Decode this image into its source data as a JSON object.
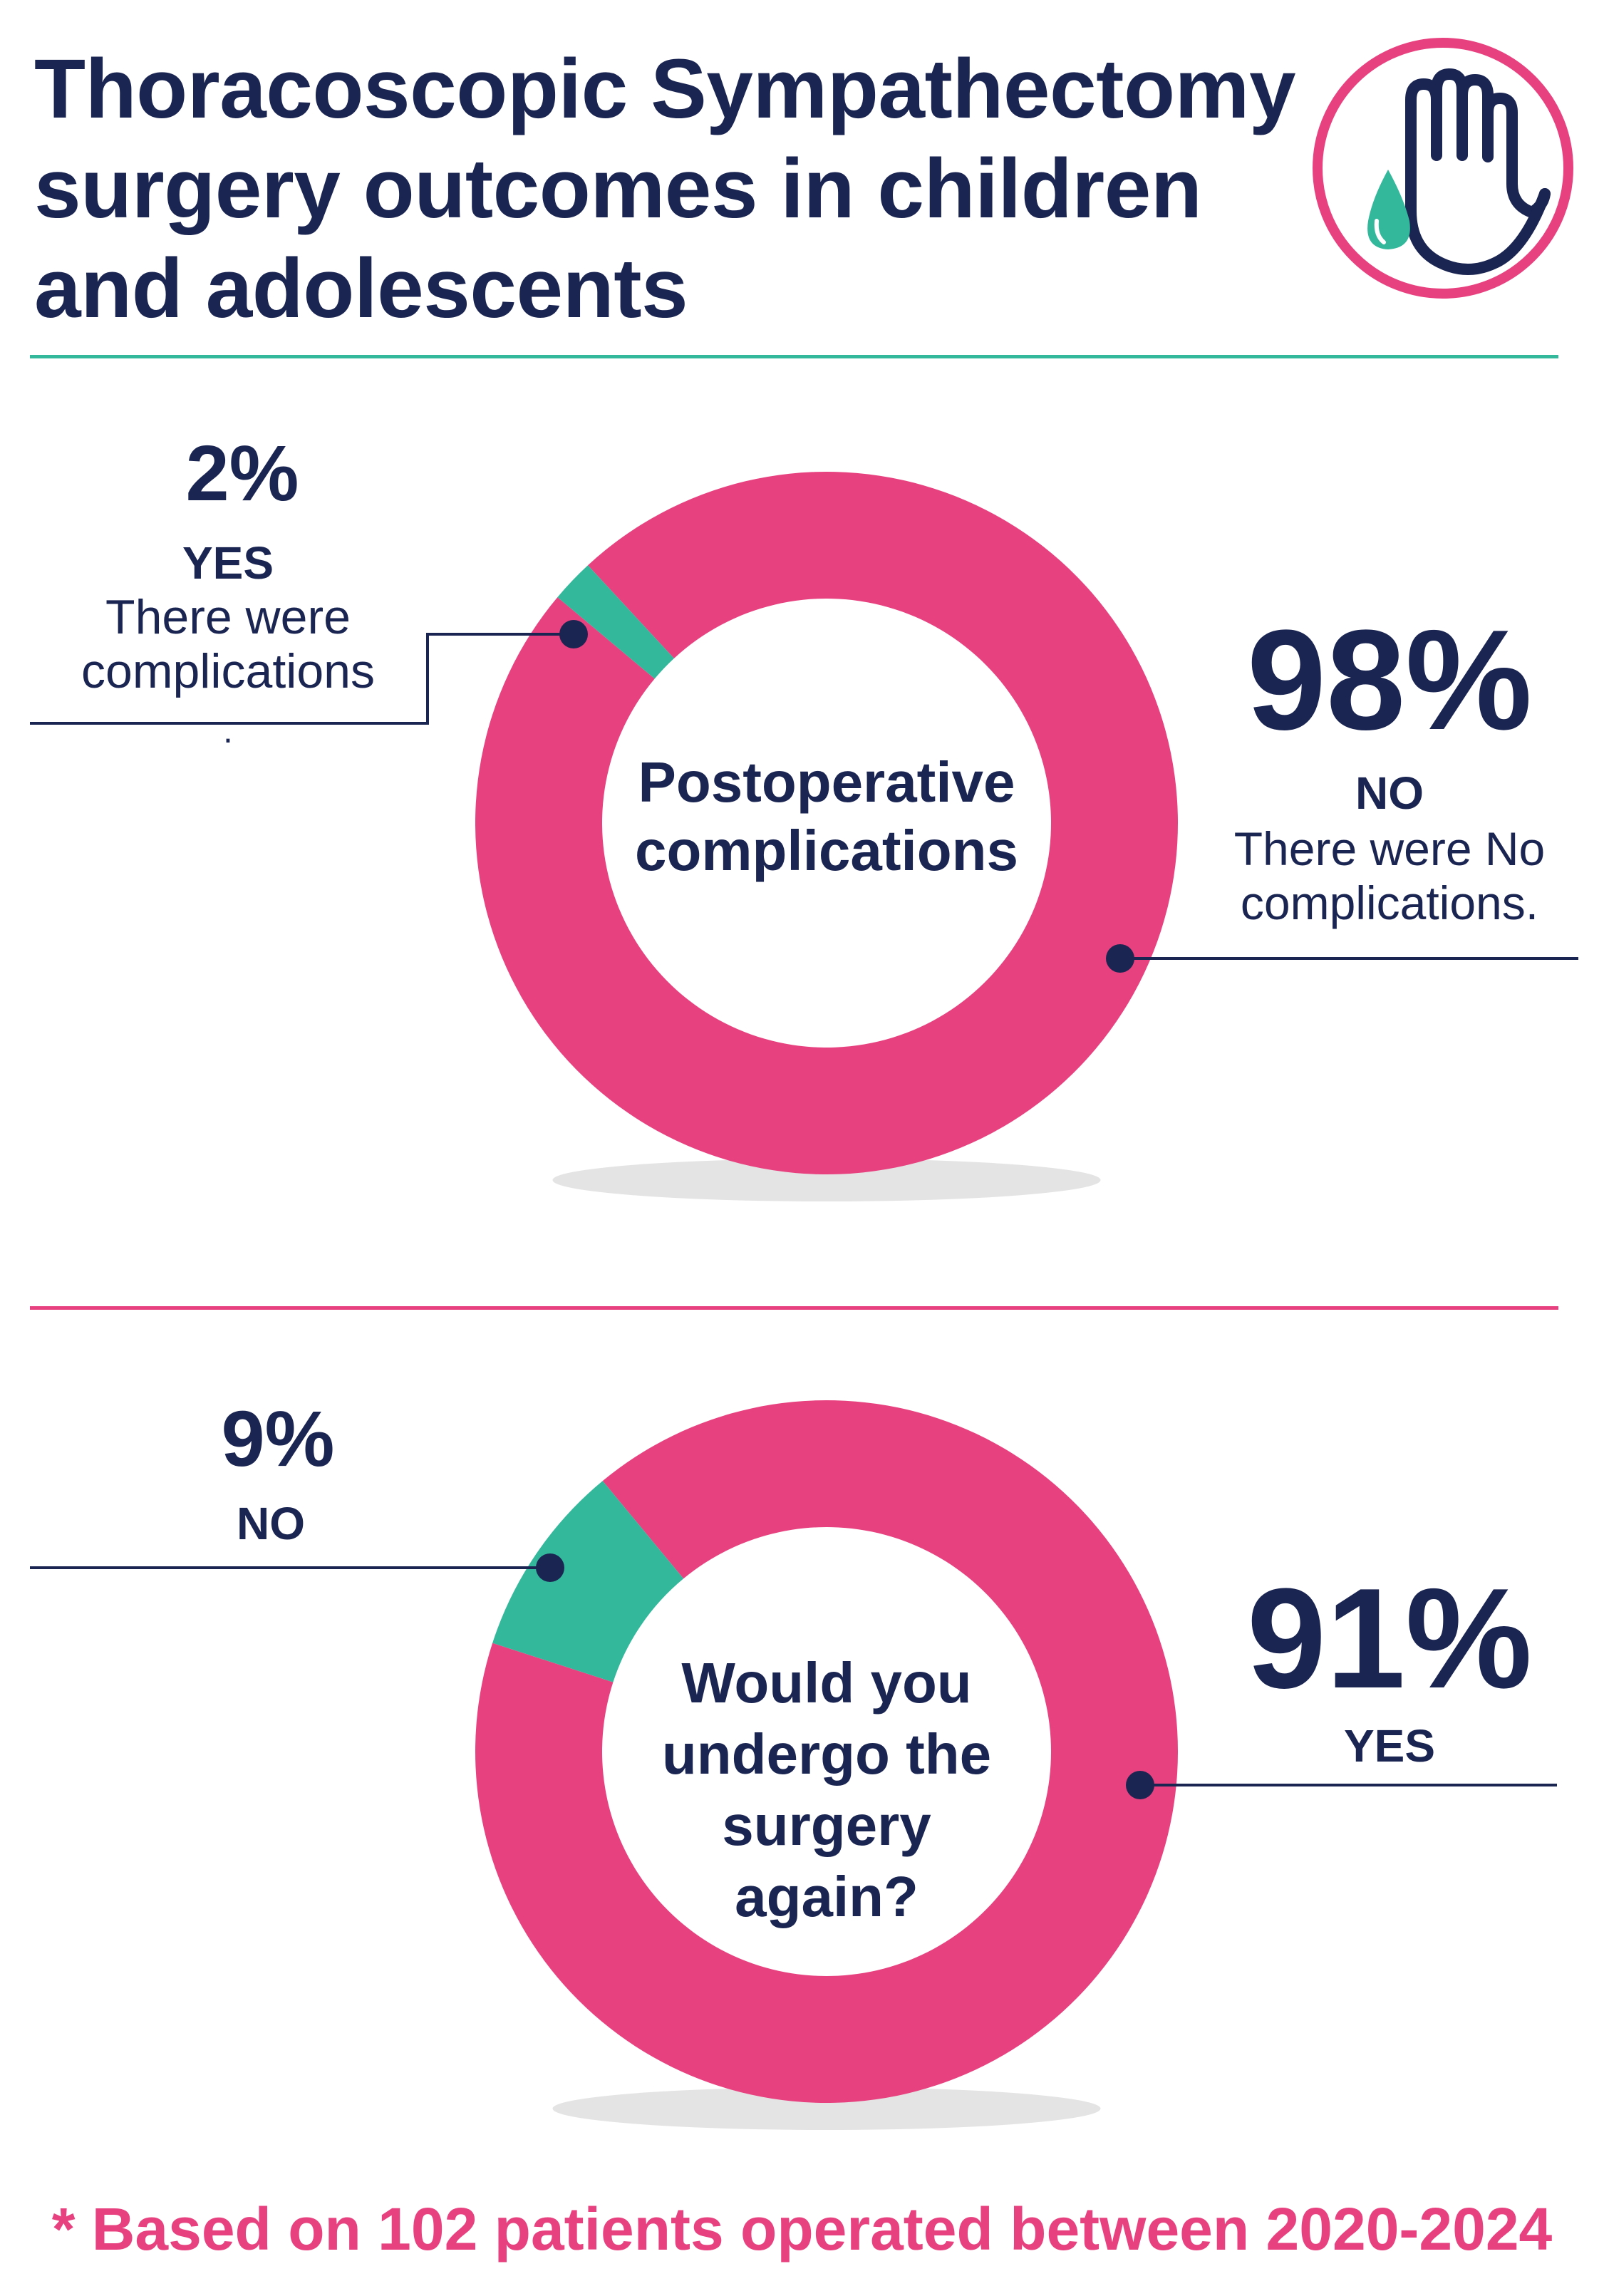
{
  "title": {
    "lines": [
      "Thoracoscopic Sympathectomy",
      "surgery outcomes in children",
      "and adolescents"
    ]
  },
  "colors": {
    "navy": "#1b2552",
    "pink": "#e8417f",
    "teal": "#33b89c",
    "white": "#ffffff"
  },
  "logo": {
    "icon": "hand-with-sweat-drop-icon"
  },
  "chart1": {
    "center_lines": [
      "Postoperative",
      "complications"
    ],
    "yes": {
      "pct": "2%",
      "label": "YES",
      "desc_lines": [
        "There were",
        "complications"
      ],
      "trailing": "."
    },
    "no": {
      "pct": "98%",
      "label": "NO",
      "desc_lines": [
        "There were No",
        "complications."
      ]
    }
  },
  "chart2": {
    "center_lines": [
      "Would you",
      "undergo the",
      "surgery",
      "again?"
    ],
    "no": {
      "pct": "9%",
      "label": "NO"
    },
    "yes": {
      "pct": "91%",
      "label": "YES"
    }
  },
  "footer": "* Based on 102 patients operated between 2020-2024",
  "chart_data": [
    {
      "type": "pie",
      "title": "Postoperative complications",
      "categories": [
        "YES - There were complications",
        "NO - There were No complications."
      ],
      "values": [
        2,
        98
      ],
      "unit": "%",
      "colors": [
        "#33b89c",
        "#e8417f"
      ]
    },
    {
      "type": "pie",
      "title": "Would you undergo the surgery again?",
      "categories": [
        "NO",
        "YES"
      ],
      "values": [
        9,
        91
      ],
      "unit": "%",
      "colors": [
        "#33b89c",
        "#e8417f"
      ]
    }
  ]
}
